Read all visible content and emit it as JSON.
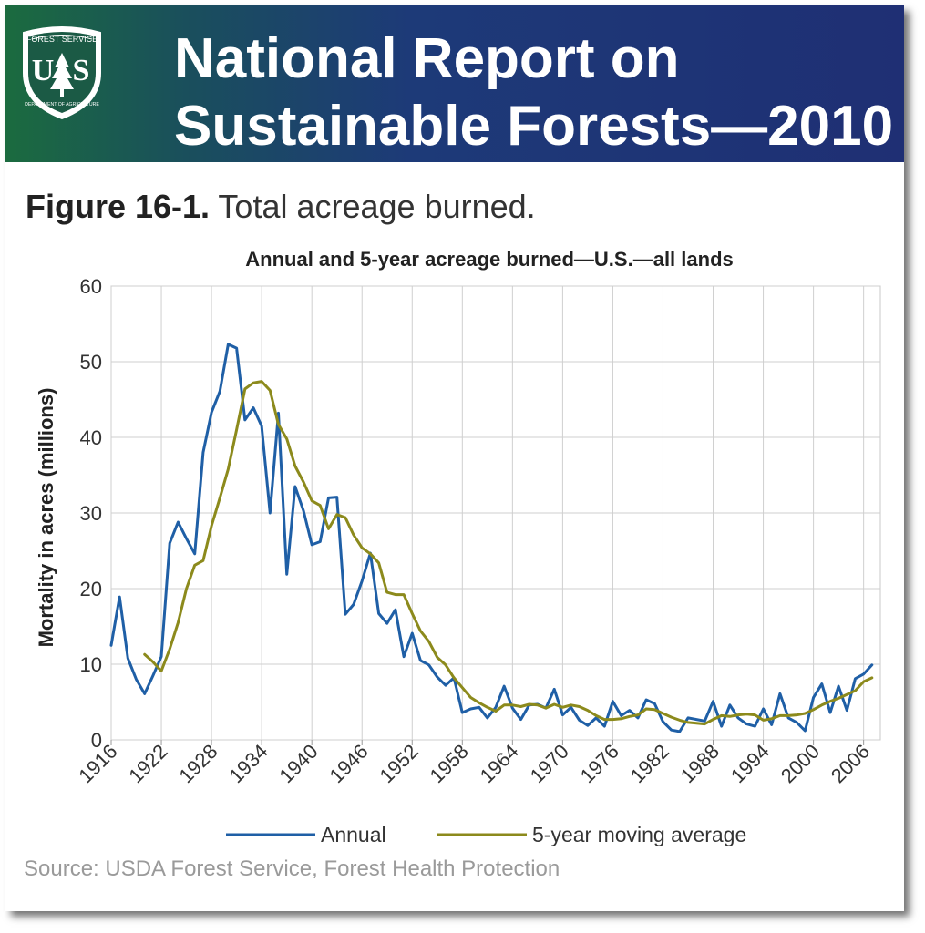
{
  "header": {
    "title_line1": "National Report on",
    "title_line2": "Sustainable Forests—2010",
    "logo": {
      "agency_text": "FOREST SERVICE",
      "letters_left": "U",
      "letters_right": "S",
      "department_text": "DEPARTMENT OF AGRICULTURE",
      "icon": "forest-service-shield-icon"
    }
  },
  "figure": {
    "label": "Figure 16-1.",
    "caption": "Total acreage burned."
  },
  "source": "Source: USDA Forest Service, Forest Health Protection",
  "colors": {
    "annual": "#1f5fa6",
    "moving_average": "#8c8a1c",
    "banner_left": "#1b6b3f",
    "banner_right": "#1f2f74"
  },
  "chart_data": {
    "type": "line",
    "title": "Annual and 5-year acreage burned—U.S.—all lands",
    "xlabel": "",
    "ylabel": "Mortality in acres (millions)",
    "xlim": [
      1916,
      2008
    ],
    "ylim": [
      0,
      60
    ],
    "yticks": [
      0,
      10,
      20,
      30,
      40,
      50,
      60
    ],
    "xticks": [
      1916,
      1922,
      1928,
      1934,
      1940,
      1946,
      1952,
      1958,
      1964,
      1970,
      1976,
      1982,
      1988,
      1994,
      2000,
      2006
    ],
    "grid": true,
    "legend": "bottom",
    "series": [
      {
        "name": "Annual",
        "x": [
          1916,
          1917,
          1918,
          1919,
          1920,
          1921,
          1922,
          1923,
          1924,
          1925,
          1926,
          1927,
          1928,
          1929,
          1930,
          1931,
          1932,
          1933,
          1934,
          1935,
          1936,
          1937,
          1938,
          1939,
          1940,
          1941,
          1942,
          1943,
          1944,
          1945,
          1946,
          1947,
          1948,
          1949,
          1950,
          1951,
          1952,
          1953,
          1954,
          1955,
          1956,
          1957,
          1958,
          1959,
          1960,
          1961,
          1962,
          1963,
          1964,
          1965,
          1966,
          1967,
          1968,
          1969,
          1970,
          1971,
          1972,
          1973,
          1974,
          1975,
          1976,
          1977,
          1978,
          1979,
          1980,
          1981,
          1982,
          1983,
          1984,
          1985,
          1986,
          1987,
          1988,
          1989,
          1990,
          1991,
          1992,
          1993,
          1994,
          1995,
          1996,
          1997,
          1998,
          1999,
          2000,
          2001,
          2002,
          2003,
          2004,
          2005,
          2006,
          2007
        ],
        "values": [
          12.5,
          18.9,
          10.8,
          8.0,
          6.1,
          8.5,
          11.0,
          26.0,
          28.8,
          26.6,
          24.6,
          38.0,
          43.3,
          46.1,
          52.3,
          51.8,
          42.3,
          43.9,
          41.5,
          30.0,
          43.2,
          21.9,
          33.5,
          30.3,
          25.8,
          26.2,
          32.0,
          32.1,
          16.6,
          17.9,
          21.0,
          24.7,
          16.7,
          15.4,
          17.2,
          11.0,
          14.1,
          10.5,
          9.9,
          8.3,
          7.2,
          8.2,
          3.6,
          4.1,
          4.3,
          2.9,
          4.3,
          7.1,
          4.2,
          2.7,
          4.6,
          4.7,
          4.2,
          6.7,
          3.3,
          4.3,
          2.6,
          1.9,
          2.9,
          1.8,
          5.1,
          3.2,
          3.9,
          2.9,
          5.3,
          4.8,
          2.4,
          1.3,
          1.1,
          2.9,
          2.7,
          2.5,
          5.1,
          1.8,
          4.6,
          2.9,
          2.1,
          1.8,
          4.1,
          2.0,
          6.1,
          2.9,
          2.3,
          1.2,
          5.6,
          7.4,
          3.6,
          7.1,
          3.9,
          8.1,
          8.7,
          9.9
        ]
      },
      {
        "name": "5-year moving average",
        "x": [
          1920,
          1921,
          1922,
          1923,
          1924,
          1925,
          1926,
          1927,
          1928,
          1929,
          1930,
          1931,
          1932,
          1933,
          1934,
          1935,
          1936,
          1937,
          1938,
          1939,
          1940,
          1941,
          1942,
          1943,
          1944,
          1945,
          1946,
          1947,
          1948,
          1949,
          1950,
          1951,
          1952,
          1953,
          1954,
          1955,
          1956,
          1957,
          1958,
          1959,
          1960,
          1961,
          1962,
          1963,
          1964,
          1965,
          1966,
          1967,
          1968,
          1969,
          1970,
          1971,
          1972,
          1973,
          1974,
          1975,
          1976,
          1977,
          1978,
          1979,
          1980,
          1981,
          1982,
          1983,
          1984,
          1985,
          1986,
          1987,
          1988,
          1989,
          1990,
          1991,
          1992,
          1993,
          1994,
          1995,
          1996,
          1997,
          1998,
          1999,
          2000,
          2001,
          2002,
          2003,
          2004,
          2005,
          2006,
          2007
        ],
        "values": [
          11.3,
          10.3,
          9.1,
          12.0,
          15.5,
          20.0,
          23.1,
          23.7,
          28.3,
          32.0,
          35.8,
          41.0,
          46.4,
          47.2,
          47.4,
          46.2,
          41.7,
          39.8,
          36.2,
          34.1,
          31.6,
          31.0,
          27.9,
          29.8,
          29.4,
          27.1,
          25.4,
          24.6,
          23.4,
          19.5,
          19.2,
          19.2,
          16.7,
          14.4,
          13.0,
          10.9,
          9.9,
          8.2,
          6.9,
          5.6,
          4.9,
          4.3,
          3.8,
          4.6,
          4.6,
          4.4,
          4.7,
          4.6,
          4.2,
          4.7,
          4.3,
          4.6,
          4.4,
          3.9,
          3.2,
          2.7,
          2.7,
          2.8,
          3.1,
          3.3,
          4.1,
          4.0,
          3.5,
          3.0,
          2.6,
          2.3,
          2.2,
          2.1,
          2.7,
          3.2,
          3.1,
          3.3,
          3.4,
          3.3,
          2.6,
          2.8,
          3.2,
          3.2,
          3.3,
          3.5,
          4.0,
          4.6,
          5.1,
          5.5,
          6.0,
          6.5,
          7.7,
          8.2
        ]
      }
    ]
  }
}
